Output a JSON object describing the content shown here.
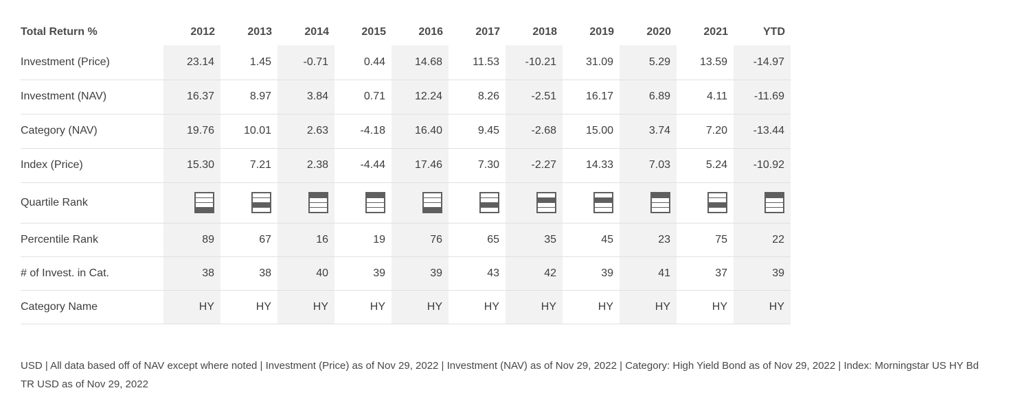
{
  "table": {
    "header": {
      "label": "Total Return %",
      "years": [
        "2012",
        "2013",
        "2014",
        "2015",
        "2016",
        "2017",
        "2018",
        "2019",
        "2020",
        "2021",
        "YTD"
      ]
    },
    "rows": [
      {
        "label": "Investment (Price)",
        "values": [
          "23.14",
          "1.45",
          "-0.71",
          "0.44",
          "14.68",
          "11.53",
          "-10.21",
          "31.09",
          "5.29",
          "13.59",
          "-14.97"
        ]
      },
      {
        "label": "Investment (NAV)",
        "values": [
          "16.37",
          "8.97",
          "3.84",
          "0.71",
          "12.24",
          "8.26",
          "-2.51",
          "16.17",
          "6.89",
          "4.11",
          "-11.69"
        ]
      },
      {
        "label": "Category (NAV)",
        "values": [
          "19.76",
          "10.01",
          "2.63",
          "-4.18",
          "16.40",
          "9.45",
          "-2.68",
          "15.00",
          "3.74",
          "7.20",
          "-13.44"
        ]
      },
      {
        "label": "Index (Price)",
        "values": [
          "15.30",
          "7.21",
          "2.38",
          "-4.44",
          "17.46",
          "7.30",
          "-2.27",
          "14.33",
          "7.03",
          "5.24",
          "-10.92"
        ]
      },
      {
        "label": "Quartile Rank",
        "quartiles": [
          4,
          3,
          1,
          1,
          4,
          3,
          2,
          2,
          1,
          3,
          1
        ]
      },
      {
        "label": "Percentile Rank",
        "values": [
          "89",
          "67",
          "16",
          "19",
          "76",
          "65",
          "35",
          "45",
          "23",
          "75",
          "22"
        ]
      },
      {
        "label": "# of Invest. in Cat.",
        "values": [
          "38",
          "38",
          "40",
          "39",
          "39",
          "43",
          "42",
          "39",
          "41",
          "37",
          "39"
        ]
      },
      {
        "label": "Category Name",
        "values": [
          "HY",
          "HY",
          "HY",
          "HY",
          "HY",
          "HY",
          "HY",
          "HY",
          "HY",
          "HY",
          "HY"
        ]
      }
    ],
    "stripe_color": "#f2f2f2",
    "icon_color": "#5f5f5f"
  },
  "footnote": "USD | All data based off of NAV except where noted | Investment (Price) as of Nov 29, 2022 | Investment (NAV) as of Nov 29, 2022 | Category: High Yield Bond as of Nov 29, 2022 | Index: Morningstar US HY Bd TR USD as of Nov 29, 2022"
}
